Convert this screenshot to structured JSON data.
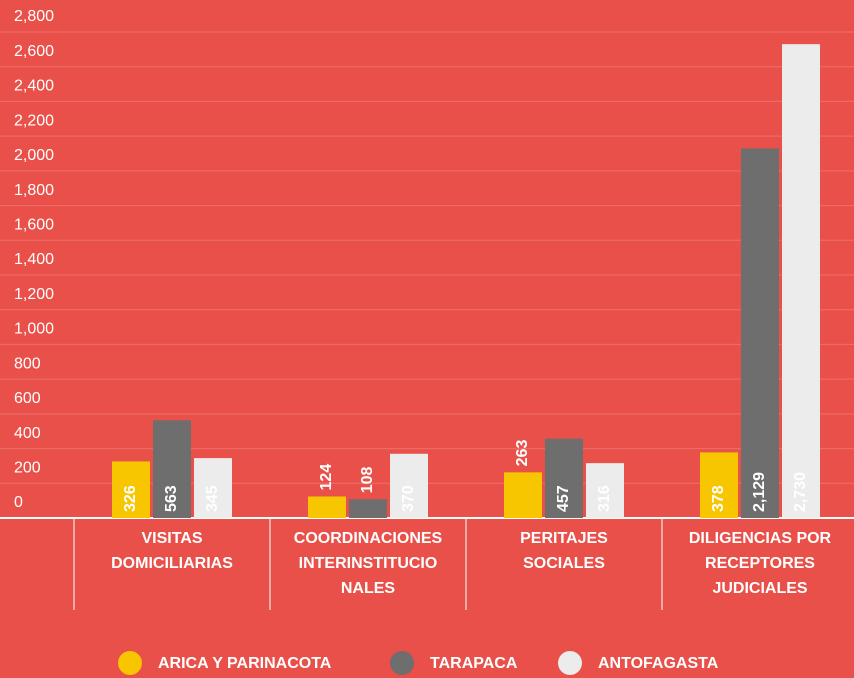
{
  "chart_data": {
    "type": "bar",
    "categories": [
      [
        "VISITAS",
        "DOMICILIARIAS"
      ],
      [
        "COORDINACIONES",
        "INTERINSTITUCIO",
        "NALES"
      ],
      [
        "PERITAJES",
        "SOCIALES"
      ],
      [
        "DILIGENCIAS POR",
        "RECEPTORES",
        "JUDICIALES"
      ]
    ],
    "series": [
      {
        "name": "ARICA Y PARINACOTA",
        "color": "#f7c600",
        "values": [
          326,
          124,
          263,
          378
        ],
        "value_labels": [
          "326",
          "124",
          "263",
          "378"
        ]
      },
      {
        "name": "TARAPACA",
        "color": "#6e6e6e",
        "values": [
          563,
          108,
          457,
          2129
        ],
        "value_labels": [
          "563",
          "108",
          "457",
          "2,129"
        ]
      },
      {
        "name": "ANTOFAGASTA",
        "color": "#ececec",
        "values": [
          345,
          370,
          316,
          2730
        ],
        "value_labels": [
          "345",
          "370",
          "316",
          "2,730"
        ]
      }
    ],
    "ylim": [
      0,
      2800
    ],
    "yticks": [
      0,
      200,
      400,
      600,
      800,
      {
        "value": 1000,
        "label": "1,000"
      },
      {
        "value": 1200,
        "label": "1,200"
      },
      {
        "value": 1400,
        "label": "1,400"
      },
      {
        "value": 1600,
        "label": "1,600"
      },
      {
        "value": 1800,
        "label": "1,800"
      },
      {
        "value": 2000,
        "label": "2,000"
      },
      {
        "value": 2200,
        "label": "2,200"
      },
      {
        "value": 2400,
        "label": "2,400"
      },
      {
        "value": 2600,
        "label": "2,600"
      },
      {
        "value": 2800,
        "label": "2,800"
      }
    ],
    "grid": true,
    "legend": "bottom"
  }
}
